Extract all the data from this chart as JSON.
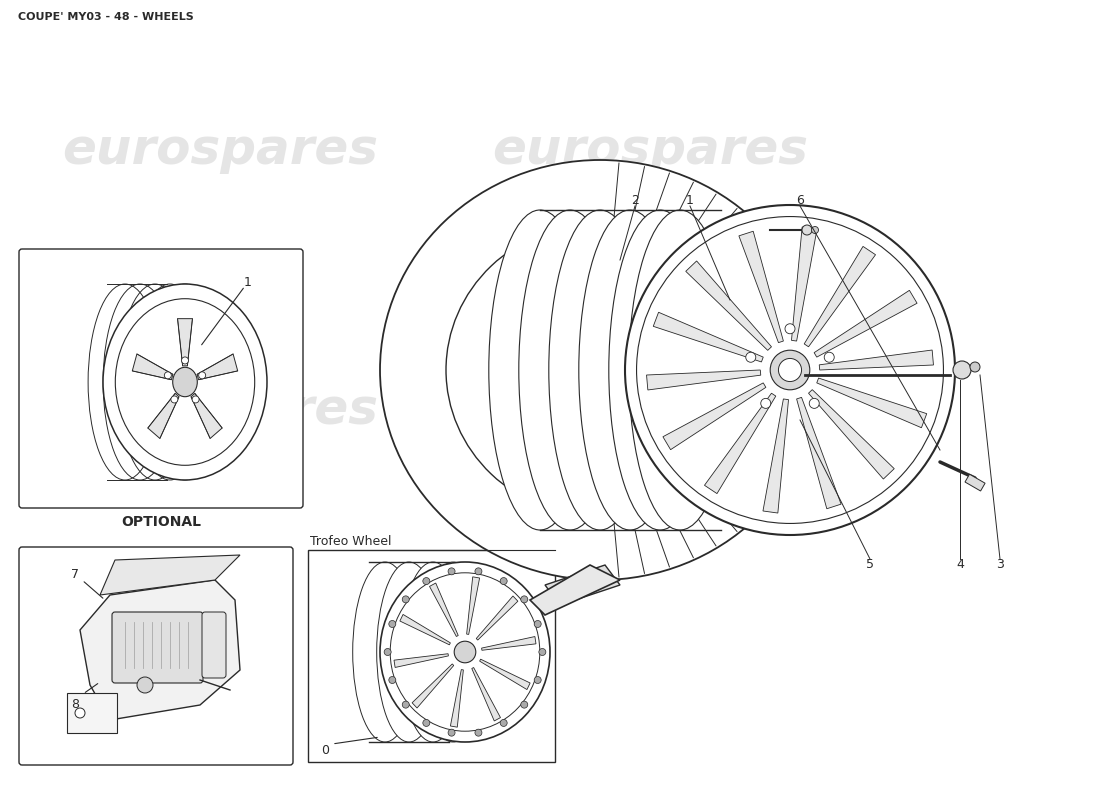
{
  "title": "COUPE' MY03 - 48 - WHEELS",
  "title_fontsize": 8,
  "background_color": "#ffffff",
  "line_color": "#2a2a2a",
  "watermark_color": "#cccccc",
  "watermark_fontsize": 36,
  "optional_text": "OPTIONAL",
  "trofeo_text": "Trofeo Wheel"
}
